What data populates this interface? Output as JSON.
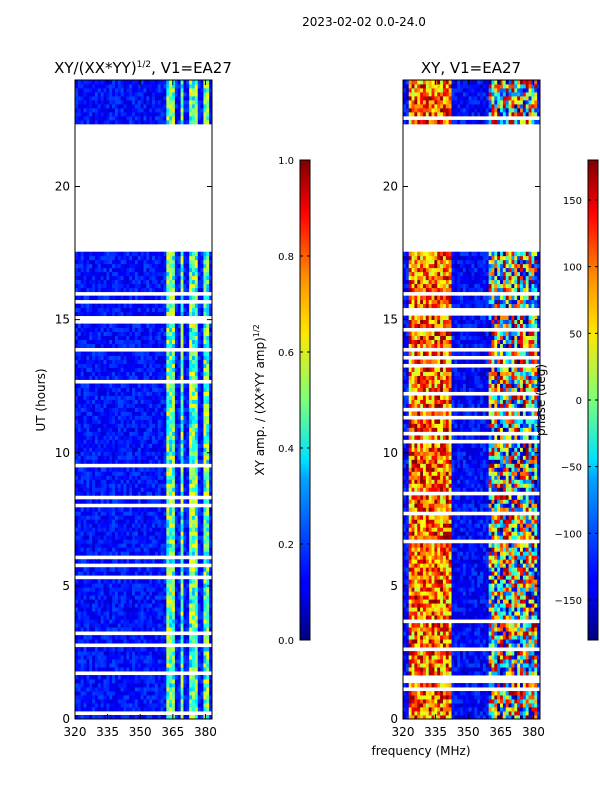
{
  "suptitle": "2023-02-02 0.0-24.0",
  "xlabel": "frequency (MHz)",
  "chart_data": [
    {
      "type": "heatmap",
      "title": "XY/(XX*YY)^1/2, V1=EA27",
      "title_main": "XY/(XX*YY)",
      "title_sup": "1/2",
      "title_rest": ", V1=EA27",
      "xlabel": "",
      "ylabel": "UT (hours)",
      "xlim": [
        320,
        383
      ],
      "ylim": [
        0,
        24
      ],
      "xticks": [
        320,
        335,
        350,
        365,
        380
      ],
      "yticks": [
        0,
        5,
        10,
        15,
        20
      ],
      "colorbar_label": "XY amp. / (XX*YY amp)^1/2",
      "colorbar_label_main": "XY amp. / (XX*YY amp)",
      "colorbar_label_sup": "1/2",
      "colorbar_range": [
        0.0,
        1.0
      ],
      "colorbar_ticks": [
        0.0,
        0.2,
        0.4,
        0.6,
        0.8,
        1.0
      ],
      "colorbar_tick_labels": [
        "0.0",
        "0.2",
        "0.4",
        "0.6",
        "0.8",
        "1.0"
      ],
      "data_gaps_hours": [
        [
          17.5,
          22.4
        ]
      ],
      "bright_bands_mhz": [
        [
          362,
          366
        ],
        [
          368,
          370
        ],
        [
          373,
          377
        ],
        [
          379,
          382
        ]
      ]
    },
    {
      "type": "heatmap",
      "title": "XY, V1=EA27",
      "xlabel": "frequency (MHz)",
      "ylabel": "",
      "xlim": [
        320,
        383
      ],
      "ylim": [
        0,
        24
      ],
      "xticks": [
        320,
        335,
        350,
        365,
        380
      ],
      "yticks": [
        0,
        5,
        10,
        15,
        20
      ],
      "colorbar_label": "phase (deg)",
      "colorbar_range": [
        -180,
        180
      ],
      "colorbar_ticks": [
        -150,
        -100,
        -50,
        0,
        50,
        100,
        150
      ],
      "colorbar_tick_labels": [
        "−150",
        "−100",
        "−50",
        "0",
        "50",
        "100",
        "150"
      ],
      "data_gaps_hours": [
        [
          17.5,
          22.4
        ]
      ],
      "bright_bands_mhz": [
        [
          323,
          342
        ],
        [
          360,
          382
        ]
      ]
    }
  ]
}
